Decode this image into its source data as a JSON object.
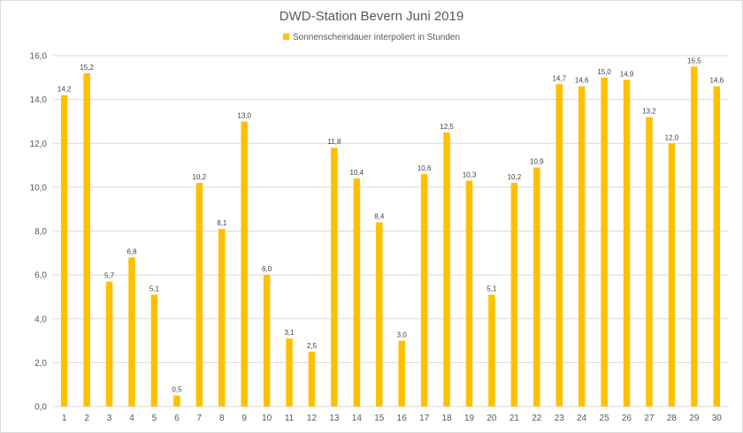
{
  "chart_data": {
    "type": "bar",
    "title": "DWD-Station Bevern Juni 2019",
    "series": [
      {
        "name": "Sonnenscheindauer interpoliert in Stunden",
        "color": "#ffc000",
        "values": [
          14.2,
          15.2,
          5.7,
          6.8,
          5.1,
          0.5,
          10.2,
          8.1,
          13.0,
          6.0,
          3.1,
          2.5,
          11.8,
          10.4,
          8.4,
          3.0,
          10.6,
          12.5,
          10.3,
          5.1,
          10.2,
          10.9,
          14.7,
          14.6,
          15.0,
          14.9,
          13.2,
          12.0,
          15.5,
          14.6
        ],
        "value_labels": [
          "14,2",
          "15,2",
          "5,7",
          "6,8",
          "5,1",
          "0,5",
          "10,2",
          "8,1",
          "13,0",
          "6,0",
          "3,1",
          "2,5",
          "11,8",
          "10,4",
          "8,4",
          "3,0",
          "10,6",
          "12,5",
          "10,3",
          "5,1",
          "10,2",
          "10,9",
          "14,7",
          "14,6",
          "15,0",
          "14,9",
          "13,2",
          "12,0",
          "15,5",
          "14,6"
        ]
      }
    ],
    "categories": [
      "1",
      "2",
      "3",
      "4",
      "5",
      "6",
      "7",
      "8",
      "9",
      "10",
      "11",
      "12",
      "13",
      "14",
      "15",
      "16",
      "17",
      "18",
      "19",
      "20",
      "21",
      "22",
      "23",
      "24",
      "25",
      "26",
      "27",
      "28",
      "29",
      "30"
    ],
    "ylim": [
      0,
      16
    ],
    "yticks": [
      0,
      2,
      4,
      6,
      8,
      10,
      12,
      14,
      16
    ],
    "ytick_labels": [
      "0,0",
      "2,0",
      "4,0",
      "6,0",
      "8,0",
      "10,0",
      "12,0",
      "14,0",
      "16,0"
    ],
    "xlabel": "",
    "ylabel": "",
    "grid": true,
    "gridline_color": "#d9d9d9",
    "legend_position": "top"
  }
}
